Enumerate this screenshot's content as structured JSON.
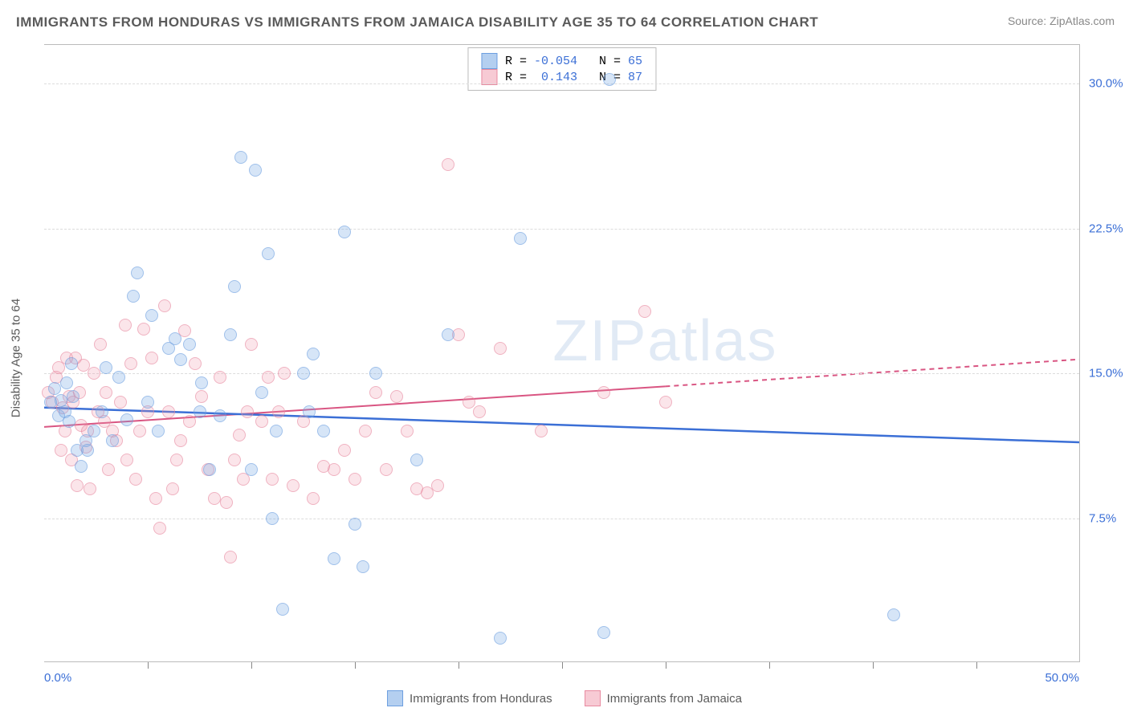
{
  "title": "IMMIGRANTS FROM HONDURAS VS IMMIGRANTS FROM JAMAICA DISABILITY AGE 35 TO 64 CORRELATION CHART",
  "source": "Source: ZipAtlas.com",
  "watermark": "ZIPatlas",
  "ylabel": "Disability Age 35 to 64",
  "chart": {
    "type": "scatter-with-trend",
    "xlim": [
      0,
      50
    ],
    "ylim": [
      0,
      32
    ],
    "yticks": [
      7.5,
      15.0,
      22.5,
      30.0
    ],
    "ytick_labels": [
      "7.5%",
      "15.0%",
      "22.5%",
      "30.0%"
    ],
    "xaxis_left": "0.0%",
    "xaxis_right": "50.0%",
    "xtick_positions": [
      5,
      10,
      15,
      20,
      25,
      30,
      35,
      40,
      45
    ],
    "background_color": "#ffffff",
    "grid_color": "#dcdcdc",
    "axis_color": "#bbbbbb",
    "marker_radius": 8,
    "series": [
      {
        "name": "Immigrants from Honduras",
        "color_fill": "rgba(118,168,228,0.45)",
        "color_stroke": "#6d9fe0",
        "trend_color": "#3b6fd6",
        "trend_style": "solid",
        "trend_width": 2.5,
        "trend": {
          "x1": 0,
          "y1": 13.2,
          "x2": 50,
          "y2": 11.4
        },
        "R": "-0.054",
        "N": "65",
        "points": [
          [
            0.3,
            13.5
          ],
          [
            0.5,
            14.2
          ],
          [
            0.7,
            12.8
          ],
          [
            0.8,
            13.6
          ],
          [
            1.0,
            13.0
          ],
          [
            1.1,
            14.5
          ],
          [
            1.2,
            12.5
          ],
          [
            1.3,
            15.5
          ],
          [
            1.4,
            13.8
          ],
          [
            1.6,
            11.0
          ],
          [
            1.8,
            10.2
          ],
          [
            2.0,
            11.5
          ],
          [
            2.1,
            11.0
          ],
          [
            2.4,
            12.0
          ],
          [
            2.8,
            13.0
          ],
          [
            3.0,
            15.3
          ],
          [
            3.3,
            11.5
          ],
          [
            3.6,
            14.8
          ],
          [
            4.0,
            12.6
          ],
          [
            4.3,
            19.0
          ],
          [
            4.5,
            20.2
          ],
          [
            5.0,
            13.5
          ],
          [
            5.2,
            18.0
          ],
          [
            5.5,
            12.0
          ],
          [
            6.0,
            16.3
          ],
          [
            6.3,
            16.8
          ],
          [
            6.6,
            15.7
          ],
          [
            7.0,
            16.5
          ],
          [
            7.5,
            13.0
          ],
          [
            7.6,
            14.5
          ],
          [
            8.0,
            10.0
          ],
          [
            8.5,
            12.8
          ],
          [
            9.0,
            17.0
          ],
          [
            9.2,
            19.5
          ],
          [
            9.5,
            26.2
          ],
          [
            10.0,
            10.0
          ],
          [
            10.2,
            25.5
          ],
          [
            10.5,
            14.0
          ],
          [
            10.8,
            21.2
          ],
          [
            11.0,
            7.5
          ],
          [
            11.2,
            12.0
          ],
          [
            11.5,
            2.8
          ],
          [
            12.5,
            15.0
          ],
          [
            12.8,
            13.0
          ],
          [
            13.0,
            16.0
          ],
          [
            13.5,
            12.0
          ],
          [
            14.0,
            5.4
          ],
          [
            14.5,
            22.3
          ],
          [
            15.0,
            7.2
          ],
          [
            15.4,
            5.0
          ],
          [
            16.0,
            15.0
          ],
          [
            18.0,
            10.5
          ],
          [
            19.5,
            17.0
          ],
          [
            22.0,
            1.3
          ],
          [
            23.0,
            22.0
          ],
          [
            27.0,
            1.6
          ],
          [
            27.3,
            30.2
          ],
          [
            41.0,
            2.5
          ]
        ]
      },
      {
        "name": "Immigrants from Jamaica",
        "color_fill": "rgba(240,150,170,0.38)",
        "color_stroke": "#e88aa0",
        "trend_color": "#d95582",
        "trend_style": "solid-then-dashed",
        "trend_width": 2,
        "trend_solid": {
          "x1": 0,
          "y1": 12.2,
          "x2": 30,
          "y2": 14.3
        },
        "trend_dashed": {
          "x1": 30,
          "y1": 14.3,
          "x2": 50,
          "y2": 15.7
        },
        "R": "0.143",
        "N": "87",
        "points": [
          [
            0.2,
            14.0
          ],
          [
            0.4,
            13.5
          ],
          [
            0.6,
            14.8
          ],
          [
            0.7,
            15.3
          ],
          [
            0.8,
            11.0
          ],
          [
            0.9,
            13.2
          ],
          [
            1.0,
            12.0
          ],
          [
            1.1,
            15.8
          ],
          [
            1.2,
            13.8
          ],
          [
            1.3,
            10.5
          ],
          [
            1.4,
            13.5
          ],
          [
            1.5,
            15.8
          ],
          [
            1.6,
            9.2
          ],
          [
            1.7,
            14.0
          ],
          [
            1.8,
            12.3
          ],
          [
            1.9,
            15.4
          ],
          [
            2.0,
            11.2
          ],
          [
            2.1,
            12.0
          ],
          [
            2.2,
            9.0
          ],
          [
            2.4,
            15.0
          ],
          [
            2.6,
            13.0
          ],
          [
            2.7,
            16.5
          ],
          [
            2.9,
            12.5
          ],
          [
            3.0,
            14.0
          ],
          [
            3.1,
            10.0
          ],
          [
            3.3,
            12.0
          ],
          [
            3.5,
            11.5
          ],
          [
            3.7,
            13.5
          ],
          [
            3.9,
            17.5
          ],
          [
            4.0,
            10.5
          ],
          [
            4.2,
            15.5
          ],
          [
            4.4,
            9.5
          ],
          [
            4.6,
            12.0
          ],
          [
            4.8,
            17.3
          ],
          [
            5.0,
            13.0
          ],
          [
            5.2,
            15.8
          ],
          [
            5.4,
            8.5
          ],
          [
            5.6,
            7.0
          ],
          [
            5.8,
            18.5
          ],
          [
            6.0,
            13.0
          ],
          [
            6.2,
            9.0
          ],
          [
            6.4,
            10.5
          ],
          [
            6.6,
            11.5
          ],
          [
            6.8,
            17.2
          ],
          [
            7.0,
            12.5
          ],
          [
            7.3,
            15.5
          ],
          [
            7.6,
            13.8
          ],
          [
            7.9,
            10.0
          ],
          [
            8.2,
            8.5
          ],
          [
            8.5,
            14.8
          ],
          [
            8.8,
            8.3
          ],
          [
            9.0,
            5.5
          ],
          [
            9.2,
            10.5
          ],
          [
            9.4,
            11.8
          ],
          [
            9.6,
            9.5
          ],
          [
            9.8,
            13.0
          ],
          [
            10.0,
            16.5
          ],
          [
            10.5,
            12.5
          ],
          [
            10.8,
            14.8
          ],
          [
            11.0,
            9.5
          ],
          [
            11.3,
            13.0
          ],
          [
            11.6,
            15.0
          ],
          [
            12.0,
            9.2
          ],
          [
            12.5,
            12.5
          ],
          [
            13.0,
            8.5
          ],
          [
            13.5,
            10.2
          ],
          [
            14.0,
            10.0
          ],
          [
            14.5,
            11.0
          ],
          [
            15.0,
            9.5
          ],
          [
            15.5,
            12.0
          ],
          [
            16.0,
            14.0
          ],
          [
            16.5,
            10.0
          ],
          [
            17.0,
            13.8
          ],
          [
            17.5,
            12.0
          ],
          [
            18.0,
            9.0
          ],
          [
            18.5,
            8.8
          ],
          [
            19.0,
            9.2
          ],
          [
            19.5,
            25.8
          ],
          [
            20.0,
            17.0
          ],
          [
            20.5,
            13.5
          ],
          [
            21.0,
            13.0
          ],
          [
            22.0,
            16.3
          ],
          [
            24.0,
            12.0
          ],
          [
            27.0,
            14.0
          ],
          [
            29.0,
            18.2
          ],
          [
            30.0,
            13.5
          ]
        ]
      }
    ]
  },
  "bottom_legend": [
    {
      "label": "Immigrants from Honduras",
      "swatch": "blue"
    },
    {
      "label": "Immigrants from Jamaica",
      "swatch": "pink"
    }
  ]
}
